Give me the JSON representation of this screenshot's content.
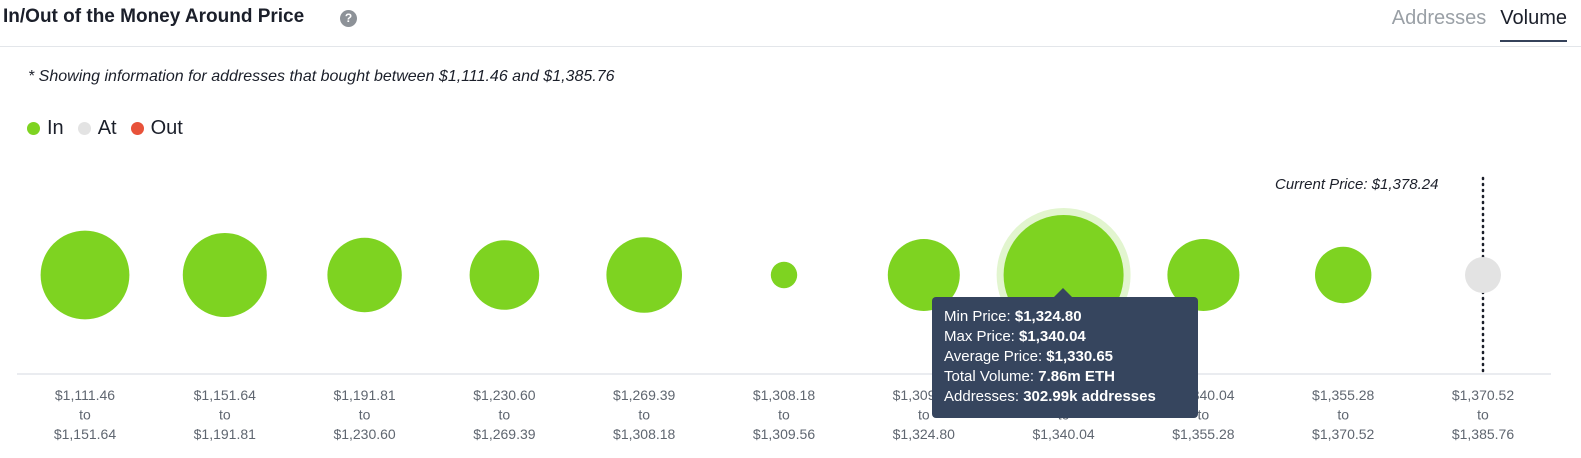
{
  "header": {
    "title": "In/Out of the Money Around Price",
    "tabs": [
      "Addresses",
      "Volume"
    ],
    "active_tab": "Volume"
  },
  "note": "* Showing information for addresses that bought between $1,111.46 and $1,385.76",
  "legend": [
    {
      "label": "In",
      "color": "#7ed321"
    },
    {
      "label": "At",
      "color": "#e3e3e3"
    },
    {
      "label": "Out",
      "color": "#e8523a"
    }
  ],
  "current_price_label": "Current Price: $1,378.24",
  "tooltip": {
    "min_label": "Min Price:",
    "min_value": "$1,324.80",
    "max_label": "Max Price:",
    "max_value": "$1,340.04",
    "avg_label": "Average Price:",
    "avg_value": "$1,330.65",
    "vol_label": "Total Volume:",
    "vol_value": "7.86m ETH",
    "addr_label": "Addresses:",
    "addr_value": "302.99k addresses"
  },
  "chart_data": {
    "type": "bubble",
    "categories": [
      [
        "$1,111.46",
        "to",
        "$1,151.64"
      ],
      [
        "$1,151.64",
        "to",
        "$1,191.81"
      ],
      [
        "$1,191.81",
        "to",
        "$1,230.60"
      ],
      [
        "$1,230.60",
        "to",
        "$1,269.39"
      ],
      [
        "$1,269.39",
        "to",
        "$1,308.18"
      ],
      [
        "$1,308.18",
        "to",
        "$1,309.56"
      ],
      [
        "$1,309.56",
        "to",
        "$1,324.80"
      ],
      [
        "$1,324.80",
        "to",
        "$1,340.04"
      ],
      [
        "$1,340.04",
        "to",
        "$1,355.28"
      ],
      [
        "$1,355.28",
        "to",
        "$1,370.52"
      ],
      [
        "$1,370.52",
        "to",
        "$1,385.76"
      ]
    ],
    "status": [
      "In",
      "In",
      "In",
      "In",
      "In",
      "In",
      "In",
      "In",
      "In",
      "In",
      "At"
    ],
    "relative_size": [
      0.74,
      0.7,
      0.62,
      0.58,
      0.63,
      0.22,
      0.6,
      1.0,
      0.6,
      0.47,
      0.3
    ],
    "highlighted_index": 7,
    "current_price": 1378.24,
    "colors": {
      "In": "#7ed321",
      "At": "#e3e3e3",
      "Out": "#e8523a"
    },
    "legend_position": "top-left"
  }
}
